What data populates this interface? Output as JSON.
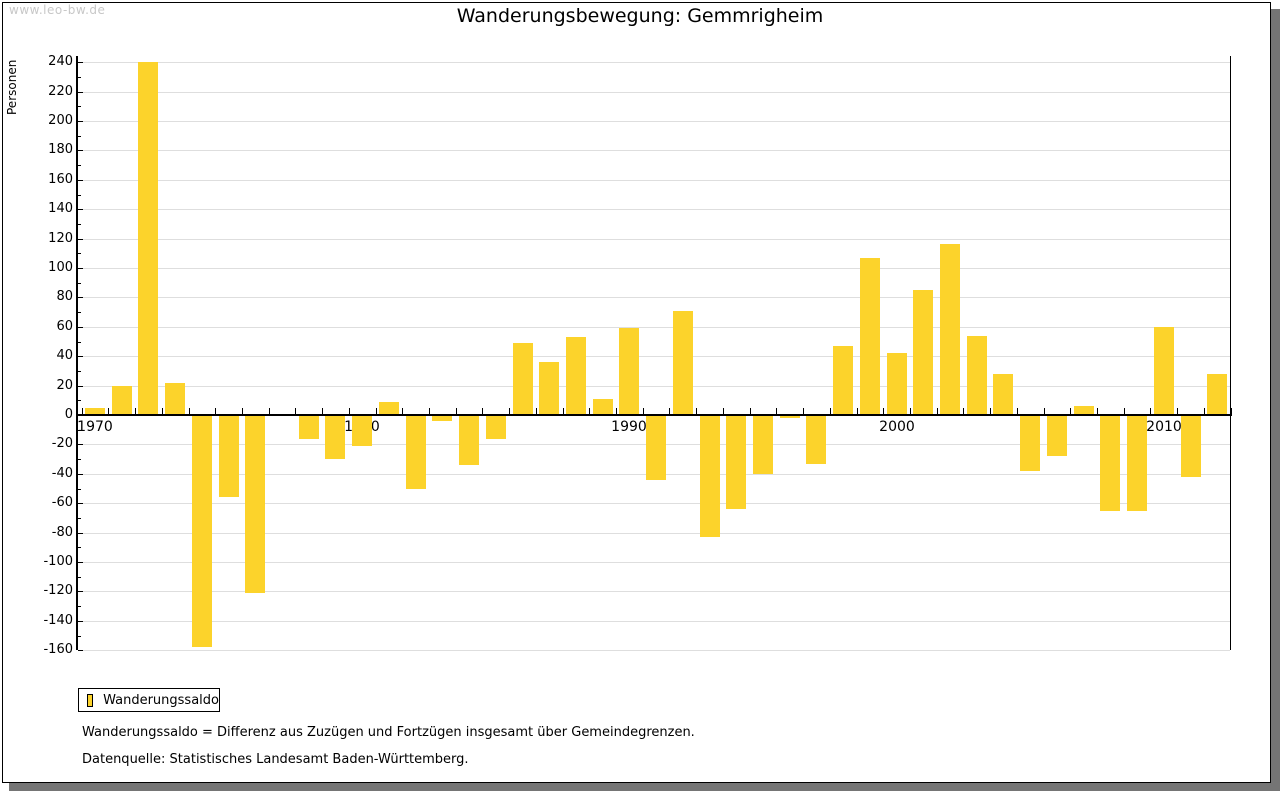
{
  "watermark": "www.leo-bw.de",
  "title": "Wanderungsbewegung: Gemmrigheim",
  "legend": {
    "label": "Wanderungssaldo"
  },
  "footnotes": [
    "Wanderungssaldo = Differenz aus Zuzügen und Fortzügen insgesamt über Gemeindegrenzen.",
    "Datenquelle: Statistisches Landesamt Baden-Württemberg."
  ],
  "colors": {
    "bar": "#fcd32b",
    "grid": "#dedede",
    "axis": "#000000",
    "watermark": "#c8c8c8",
    "shadow": "#757575",
    "text": "#000000"
  },
  "chart_data": {
    "type": "bar",
    "title": "Wanderungsbewegung: Gemmrigheim",
    "xlabel": "",
    "ylabel": "Personen",
    "ylim": [
      -160,
      240
    ],
    "y_tick_step": 20,
    "y_minor_tick_step": 10,
    "grid": true,
    "legend_position": "bottom-left",
    "x": [
      1970,
      1971,
      1972,
      1973,
      1974,
      1975,
      1976,
      1977,
      1978,
      1979,
      1980,
      1981,
      1982,
      1983,
      1984,
      1985,
      1986,
      1987,
      1988,
      1989,
      1990,
      1991,
      1992,
      1993,
      1994,
      1995,
      1996,
      1997,
      1998,
      1999,
      2000,
      2001,
      2002,
      2003,
      2004,
      2005,
      2006,
      2007,
      2008,
      2009,
      2010,
      2011,
      2012
    ],
    "x_tick_labels": [
      "1970",
      "1980",
      "1990",
      "2000",
      "2010"
    ],
    "series": [
      {
        "name": "Wanderungssaldo",
        "values": [
          5,
          20,
          240,
          22,
          -158,
          -56,
          -121,
          1,
          -16,
          -30,
          -21,
          9,
          -50,
          -4,
          -34,
          -16,
          49,
          36,
          53,
          11,
          59,
          -44,
          71,
          -83,
          -64,
          -40,
          -2,
          -33,
          47,
          107,
          42,
          85,
          116,
          54,
          28,
          -38,
          -28,
          6,
          -65,
          -65,
          60,
          -42,
          28
        ]
      }
    ]
  }
}
